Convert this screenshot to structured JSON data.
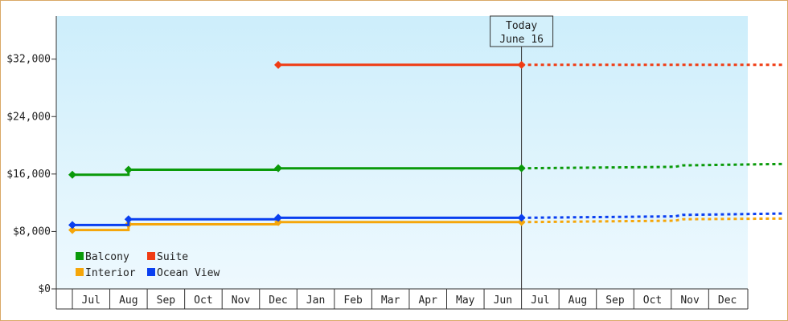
{
  "chart_data": {
    "type": "line",
    "title": "",
    "xlabel": "",
    "ylabel": "",
    "ylim": [
      0,
      38000
    ],
    "y_ticks": [
      0,
      8000,
      16000,
      24000,
      32000
    ],
    "y_tick_labels": [
      "$0",
      "$8,000",
      "$16,000",
      "$24,000",
      "$32,000"
    ],
    "categories": [
      "Jul",
      "Aug",
      "Sep",
      "Oct",
      "Nov",
      "Dec",
      "Jan",
      "Feb",
      "Mar",
      "Apr",
      "May",
      "Jun",
      "Jul",
      "Aug",
      "Sep",
      "Oct",
      "Nov",
      "Dec"
    ],
    "grid": false,
    "legend_placement": "bottom-left",
    "today_marker": {
      "line1": "Today",
      "line2": "June 16",
      "x": 11.5
    },
    "series": [
      {
        "name": "Balcony",
        "color": "#0a9a0a",
        "points": [
          [
            -0.5,
            15900
          ],
          [
            1.0,
            15900
          ],
          [
            1.0,
            16600
          ],
          [
            5.0,
            16600
          ],
          [
            5.0,
            16800
          ],
          [
            11.5,
            16800
          ]
        ],
        "markers": [
          -0.5,
          1.0,
          5.0,
          11.5
        ],
        "projection": [
          [
            11.5,
            16800
          ],
          [
            15.6,
            17000
          ],
          [
            15.8,
            17200
          ],
          [
            18.5,
            17400
          ]
        ]
      },
      {
        "name": "Suite",
        "color": "#f03c14",
        "points": [
          [
            5.0,
            31200
          ],
          [
            11.5,
            31200
          ]
        ],
        "markers": [
          5.0,
          11.5
        ],
        "projection": [
          [
            11.5,
            31200
          ],
          [
            18.5,
            31200
          ]
        ]
      },
      {
        "name": "Interior",
        "color": "#f5a60a",
        "points": [
          [
            -0.5,
            8200
          ],
          [
            1.0,
            8200
          ],
          [
            1.0,
            9000
          ],
          [
            5.0,
            9000
          ],
          [
            5.0,
            9300
          ],
          [
            11.5,
            9300
          ]
        ],
        "markers": [
          -0.5,
          1.0,
          5.0,
          11.5
        ],
        "projection": [
          [
            11.5,
            9300
          ],
          [
            15.6,
            9500
          ],
          [
            15.8,
            9700
          ],
          [
            18.5,
            9800
          ]
        ]
      },
      {
        "name": "Ocean View",
        "color": "#0a3ff0",
        "points": [
          [
            -0.5,
            8900
          ],
          [
            1.0,
            8900
          ],
          [
            1.0,
            9700
          ],
          [
            5.0,
            9700
          ],
          [
            5.0,
            9900
          ],
          [
            11.5,
            9900
          ]
        ],
        "markers": [
          -0.5,
          1.0,
          5.0,
          11.5
        ],
        "projection": [
          [
            11.5,
            9900
          ],
          [
            15.6,
            10100
          ],
          [
            15.8,
            10300
          ],
          [
            18.5,
            10500
          ]
        ]
      }
    ]
  }
}
